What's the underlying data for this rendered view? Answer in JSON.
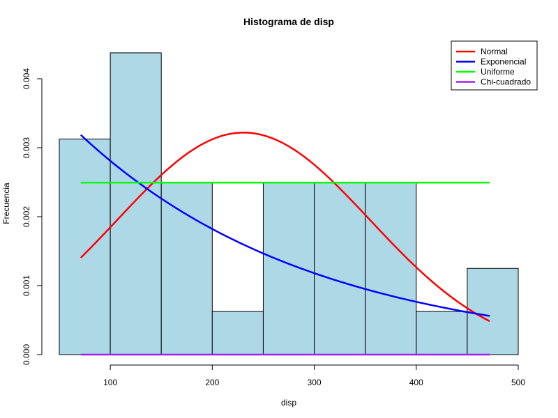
{
  "chart_data": {
    "type": "bar",
    "title": "Histograma de disp",
    "xlabel": "disp",
    "ylabel": "Frecuencia",
    "xlim": [
      50,
      500
    ],
    "ylim": [
      0,
      0.0044
    ],
    "x_ticks": [
      100,
      200,
      300,
      400,
      500
    ],
    "x_tick_labels": [
      "100",
      "200",
      "300",
      "400",
      "500"
    ],
    "y_ticks": [
      0,
      0.001,
      0.002,
      0.003,
      0.004
    ],
    "y_tick_labels": [
      "0.000",
      "0.001",
      "0.002",
      "0.003",
      "0.004"
    ],
    "bins": [
      {
        "x0": 50,
        "x1": 100,
        "density": 0.003125
      },
      {
        "x0": 100,
        "x1": 150,
        "density": 0.004375
      },
      {
        "x0": 150,
        "x1": 200,
        "density": 0.0025
      },
      {
        "x0": 200,
        "x1": 250,
        "density": 0.000625
      },
      {
        "x0": 250,
        "x1": 300,
        "density": 0.0025
      },
      {
        "x0": 300,
        "x1": 350,
        "density": 0.0025
      },
      {
        "x0": 350,
        "x1": 400,
        "density": 0.0025
      },
      {
        "x0": 400,
        "x1": 450,
        "density": 0.000625
      },
      {
        "x0": 450,
        "x1": 500,
        "density": 0.00125
      }
    ],
    "bar_fill": "#add8e6",
    "series": [
      {
        "name": "Normal",
        "color": "#ff0000",
        "kind": "normal",
        "mean": 230.72,
        "sd": 123.94,
        "x_range": [
          71.1,
          472
        ]
      },
      {
        "name": "Exponencial",
        "color": "#0000ff",
        "kind": "exponential",
        "rate": 0.004334,
        "x_range": [
          71.1,
          472
        ]
      },
      {
        "name": "Uniforme",
        "color": "#00ff00",
        "kind": "uniform",
        "value": 0.002494,
        "x_range": [
          71.1,
          472
        ]
      },
      {
        "name": "Chi-cuadrado",
        "color": "#a020f0",
        "kind": "flat",
        "value": 0,
        "x_range": [
          71.1,
          472
        ]
      }
    ],
    "legend_position": "top-right",
    "grid": false
  }
}
